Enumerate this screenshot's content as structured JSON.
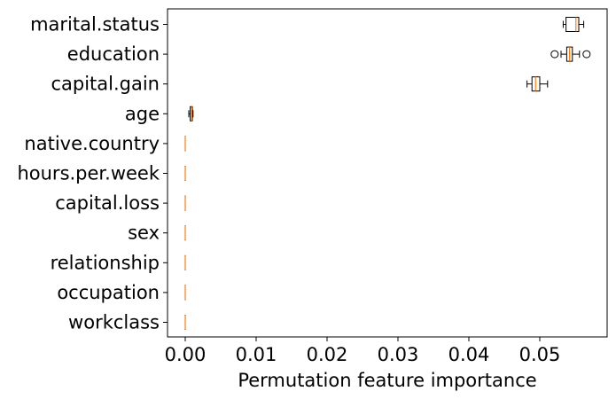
{
  "chart_data": {
    "type": "boxplot",
    "orientation": "horizontal",
    "xlabel": "Permutation feature importance",
    "ylabel": "",
    "xlim": [
      -0.0025,
      0.0595
    ],
    "xticks": [
      0.0,
      0.01,
      0.02,
      0.03,
      0.04,
      0.05
    ],
    "xtick_labels": [
      "0.00",
      "0.01",
      "0.02",
      "0.03",
      "0.04",
      "0.05"
    ],
    "grid": false,
    "box_color": "#000000",
    "median_color": "#ff7f0e",
    "categories": [
      "marital.status",
      "education",
      "capital.gain",
      "age",
      "native.country",
      "hours.per.week",
      "capital.loss",
      "sex",
      "relationship",
      "occupation",
      "workclass"
    ],
    "boxes": [
      {
        "label": "marital.status",
        "whislo": 0.0533,
        "q1": 0.0537,
        "med": 0.0551,
        "q3": 0.0555,
        "whishi": 0.0562,
        "fliers": []
      },
      {
        "label": "education",
        "whislo": 0.053,
        "q1": 0.0538,
        "med": 0.0542,
        "q3": 0.0546,
        "whishi": 0.0556,
        "fliers": [
          0.0521,
          0.0566
        ]
      },
      {
        "label": "capital.gain",
        "whislo": 0.0482,
        "q1": 0.0489,
        "med": 0.0494,
        "q3": 0.05,
        "whishi": 0.0511,
        "fliers": []
      },
      {
        "label": "age",
        "whislo": 0.0005,
        "q1": 0.0007,
        "med": 0.0009,
        "q3": 0.001,
        "whishi": 0.0011,
        "fliers": []
      },
      {
        "label": "native.country",
        "whislo": 0.0,
        "q1": 0.0,
        "med": 0.0,
        "q3": 0.0,
        "whishi": 0.0,
        "fliers": []
      },
      {
        "label": "hours.per.week",
        "whislo": 0.0,
        "q1": 0.0,
        "med": 0.0,
        "q3": 0.0,
        "whishi": 0.0,
        "fliers": []
      },
      {
        "label": "capital.loss",
        "whislo": 0.0,
        "q1": 0.0,
        "med": 0.0,
        "q3": 0.0,
        "whishi": 0.0,
        "fliers": []
      },
      {
        "label": "sex",
        "whislo": 0.0,
        "q1": 0.0,
        "med": 0.0,
        "q3": 0.0,
        "whishi": 0.0,
        "fliers": []
      },
      {
        "label": "relationship",
        "whislo": 0.0,
        "q1": 0.0,
        "med": 0.0,
        "q3": 0.0,
        "whishi": 0.0,
        "fliers": []
      },
      {
        "label": "occupation",
        "whislo": 0.0,
        "q1": 0.0,
        "med": 0.0,
        "q3": 0.0,
        "whishi": 0.0,
        "fliers": []
      },
      {
        "label": "workclass",
        "whislo": 0.0,
        "q1": 0.0,
        "med": 0.0,
        "q3": 0.0,
        "whishi": 0.0,
        "fliers": []
      }
    ]
  }
}
